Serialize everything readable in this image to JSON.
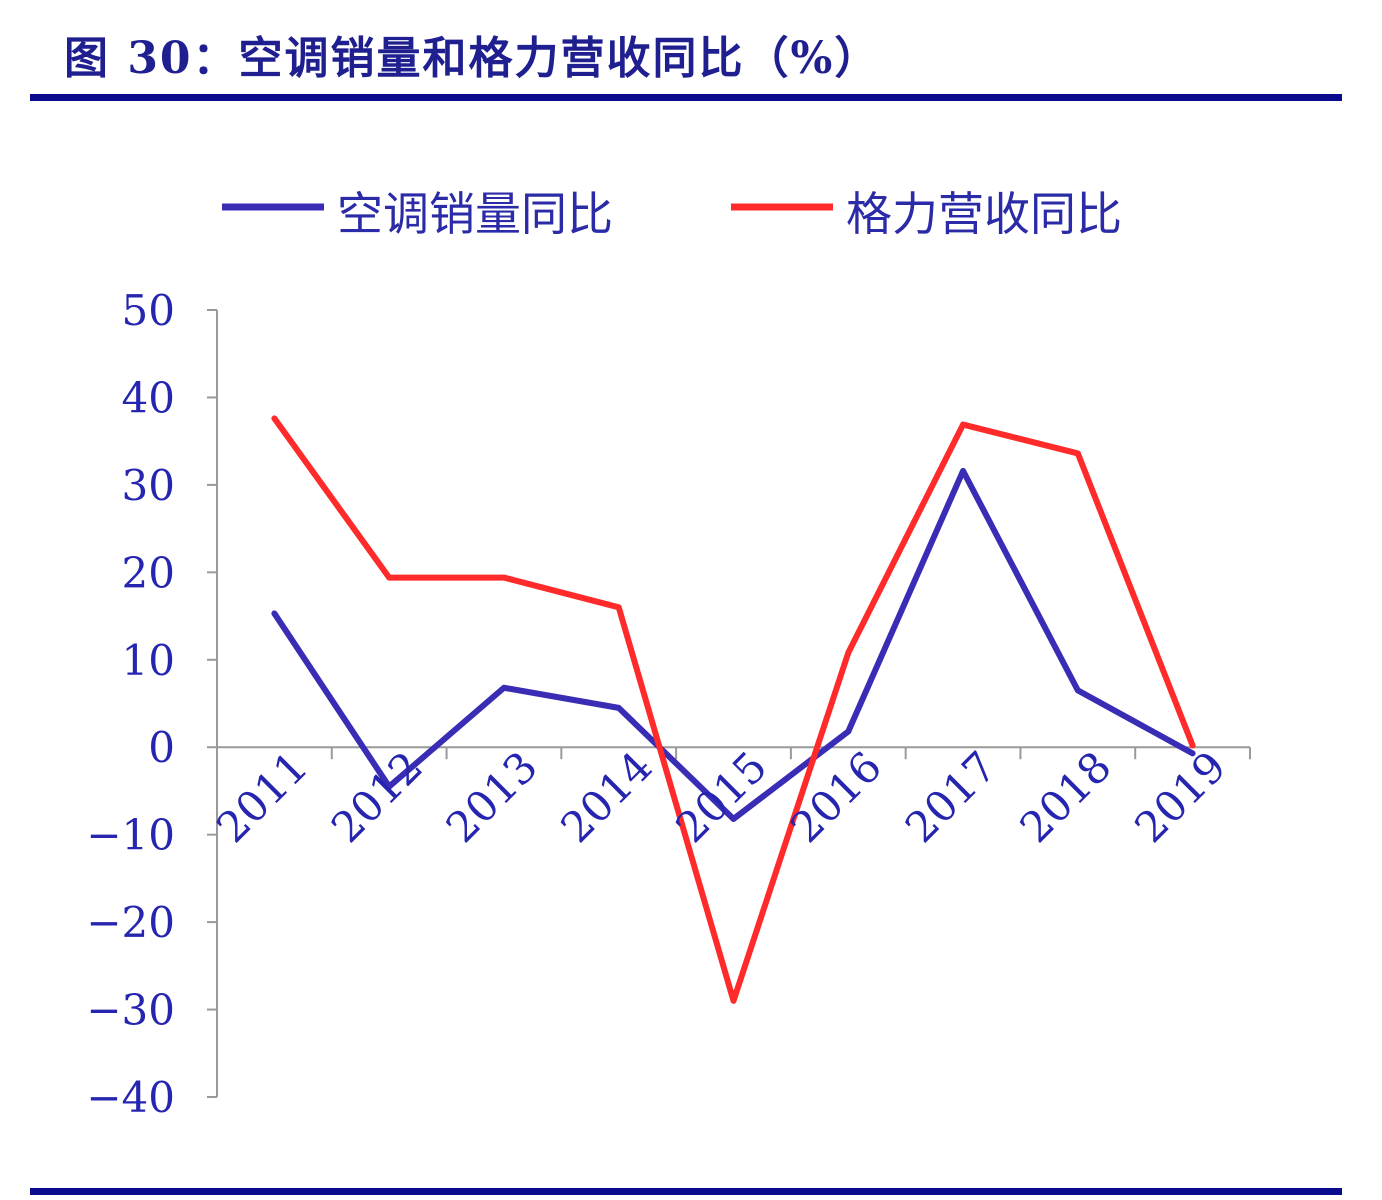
{
  "figure": {
    "title": "图 30：空调销量和格力营收同比（%）"
  },
  "chart_data": {
    "type": "line",
    "title": "",
    "xlabel": "",
    "ylabel": "",
    "categories": [
      "2011",
      "2012",
      "2013",
      "2014",
      "2015",
      "2016",
      "2017",
      "2018",
      "2019"
    ],
    "ylim": [
      -40,
      50
    ],
    "yticks": [
      "50",
      "40",
      "30",
      "20",
      "10",
      "0",
      "-10",
      "-20",
      "-30",
      "-40"
    ],
    "grid": false,
    "legend_position": "top",
    "series": [
      {
        "name": "空调销量同比",
        "color": "#3a2db5",
        "values": [
          15.3,
          -4.5,
          6.8,
          4.5,
          -8.2,
          1.8,
          31.6,
          6.5,
          -0.7
        ]
      },
      {
        "name": "格力营收同比",
        "color": "#ff2a2a",
        "values": [
          37.6,
          19.4,
          19.4,
          16.0,
          -29.0,
          10.8,
          36.9,
          33.6,
          0.2
        ]
      }
    ]
  }
}
